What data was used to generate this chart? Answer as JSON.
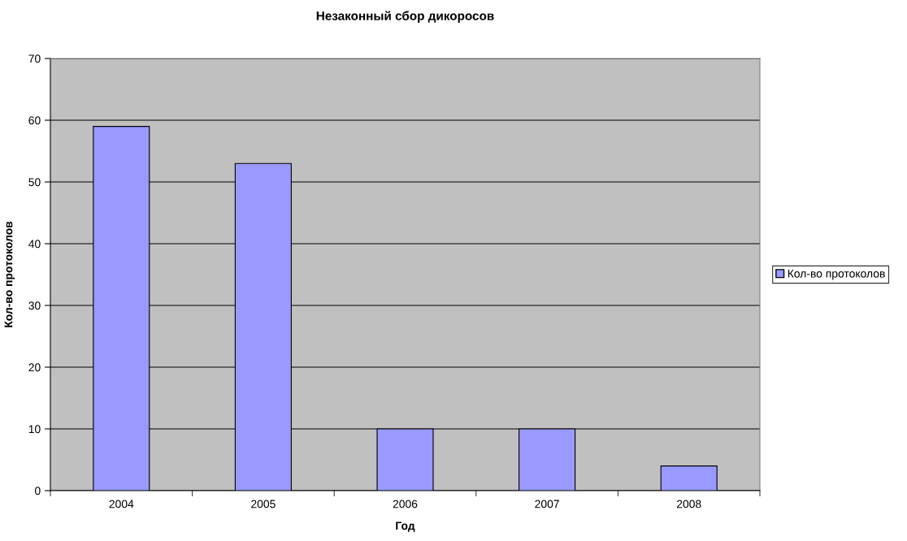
{
  "chart_data": {
    "type": "bar",
    "title": "Незаконный сбор дикоросов",
    "xlabel": "Год",
    "ylabel": "Кол-во протоколов",
    "categories": [
      "2004",
      "2005",
      "2006",
      "2007",
      "2008"
    ],
    "series": [
      {
        "name": "Кол-во протоколов",
        "color": "#9999ff",
        "values": [
          59,
          53,
          10,
          10,
          4
        ]
      }
    ],
    "ylim": [
      0,
      70
    ],
    "yticks": [
      0,
      10,
      20,
      30,
      40,
      50,
      60,
      70
    ],
    "grid": "y",
    "legend": "right"
  }
}
